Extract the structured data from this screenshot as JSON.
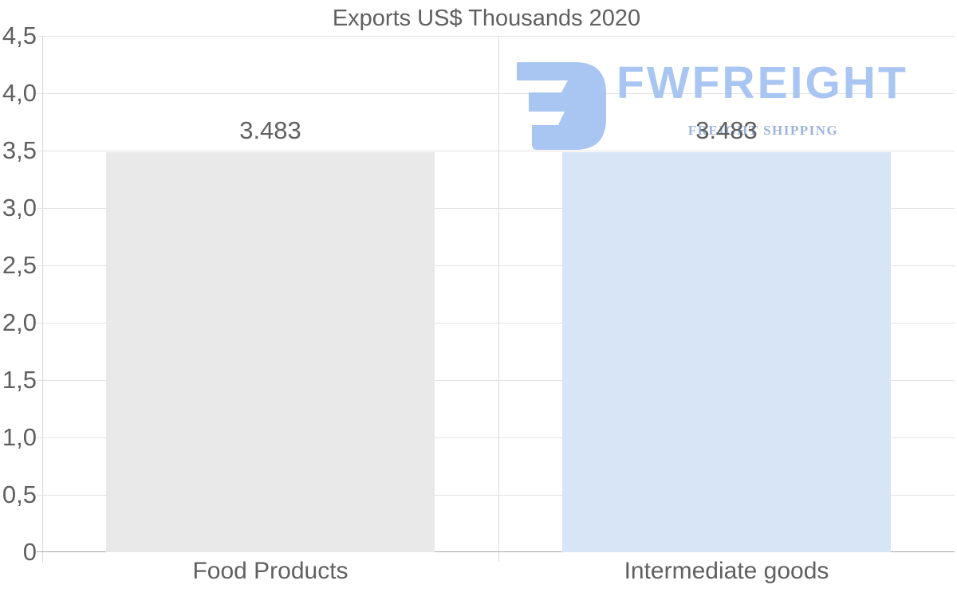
{
  "chart_data": {
    "type": "bar",
    "title": "Exports US$ Thousands 2020",
    "categories": [
      "Food Products",
      "Intermediate goods"
    ],
    "values": [
      3483,
      3483
    ],
    "value_labels": [
      "3.483",
      "3.483"
    ],
    "bar_colors": [
      "#e9e9e9",
      "#d7e5f7"
    ],
    "xlabel": "",
    "ylabel": "",
    "ylim": [
      0,
      4500
    ],
    "ytick_values": [
      0,
      500,
      1000,
      1500,
      2000,
      2500,
      3000,
      3500,
      4000,
      4500
    ],
    "ytick_labels": [
      "0",
      "0,5",
      "1,0",
      "1,5",
      "2,0",
      "2,5",
      "3,0",
      "3,5",
      "4,0",
      "4,5"
    ],
    "decimal_style": "comma",
    "grid": "horizontal gridlines on",
    "legend": "none"
  },
  "watermark": {
    "brand": "FWFREIGHT",
    "tagline": "FREIGHT SHIPPING",
    "logo_icon": "fw-logo-mark",
    "brand_color": "#a9c5f1",
    "tagline_color": "#9cb3de"
  },
  "colors": {
    "text": "#606060",
    "gridline": "#e2e2e2",
    "baseline": "#a6a6a6",
    "axis_line": "#d6d6d6",
    "category_separator": "#dcdcdc",
    "background": "#ffffff"
  }
}
